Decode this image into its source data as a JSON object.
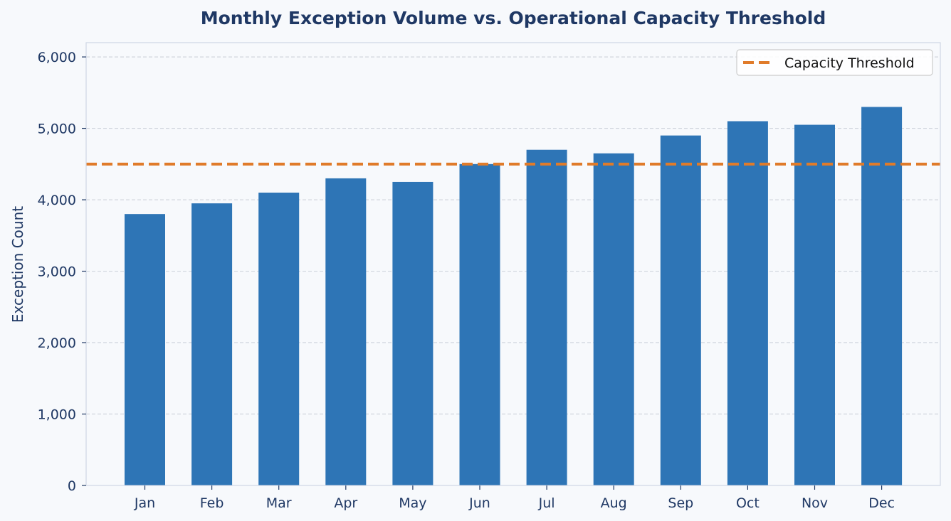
{
  "chart_data": {
    "type": "bar",
    "title": "Monthly Exception Volume vs. Operational Capacity Threshold",
    "xlabel": "",
    "ylabel": "Exception Count",
    "categories": [
      "Jan",
      "Feb",
      "Mar",
      "Apr",
      "May",
      "Jun",
      "Jul",
      "Aug",
      "Sep",
      "Oct",
      "Nov",
      "Dec"
    ],
    "values": [
      3800,
      3950,
      4100,
      4300,
      4250,
      4500,
      4700,
      4650,
      4900,
      5100,
      5050,
      5300
    ],
    "ylim": [
      0,
      6200
    ],
    "yticks": [
      0,
      1000,
      2000,
      3000,
      4000,
      5000,
      6000
    ],
    "ytick_labels": [
      "0",
      "1,000",
      "2,000",
      "3,000",
      "4,000",
      "5,000",
      "6,000"
    ],
    "grid": "horizontal-dashed",
    "threshold": {
      "name": "Capacity Threshold",
      "value": 4500,
      "style": "dashed"
    },
    "legend": {
      "placement": "top-right",
      "entries": [
        "Capacity Threshold"
      ]
    },
    "colors": {
      "bar": "#2e75b6",
      "threshold": "#e07b2a",
      "text": "#1f3864",
      "grid": "#d0d5dd",
      "axes": "#cfd6e4",
      "background": "#f7f9fc"
    }
  }
}
